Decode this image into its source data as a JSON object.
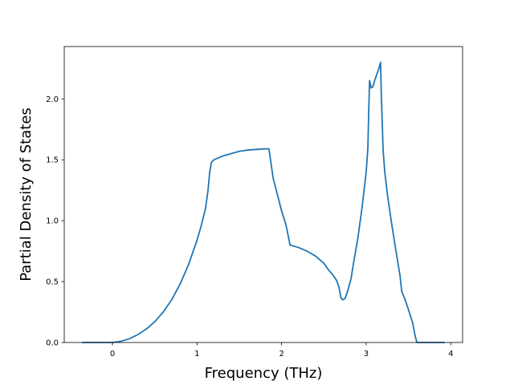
{
  "chart_data": {
    "type": "line",
    "title": "",
    "xlabel": "Frequency (THz)",
    "ylabel": "Partial Density of States",
    "xlim": [
      -0.57,
      4.14
    ],
    "ylim": [
      0.0,
      2.43
    ],
    "xticks": [
      0,
      1,
      2,
      3,
      4
    ],
    "xtick_labels": [
      "0",
      "1",
      "2",
      "3",
      "4"
    ],
    "yticks": [
      0.0,
      0.5,
      1.0,
      1.5,
      2.0
    ],
    "ytick_labels": [
      "0.0",
      "0.5",
      "1.0",
      "1.5",
      "2.0"
    ],
    "grid": false,
    "legend": "none",
    "colors": {
      "line": "#1f77b4",
      "axes": "#000000",
      "background": "#ffffff"
    },
    "series": [
      {
        "x": [
          -0.36,
          -0.2,
          0.0,
          0.05,
          0.1,
          0.2,
          0.3,
          0.4,
          0.5,
          0.6,
          0.7,
          0.8,
          0.9,
          1.0,
          1.05,
          1.1,
          1.13,
          1.15,
          1.17,
          1.2,
          1.3,
          1.4,
          1.5,
          1.6,
          1.7,
          1.8,
          1.85,
          1.9,
          2.0,
          2.05,
          2.08,
          2.1,
          2.2,
          2.3,
          2.4,
          2.5,
          2.55,
          2.6,
          2.65,
          2.68,
          2.7,
          2.72,
          2.75,
          2.78,
          2.82,
          2.85,
          2.9,
          2.95,
          3.0,
          3.02,
          3.03,
          3.04,
          3.06,
          3.08,
          3.1,
          3.15,
          3.17,
          3.18,
          3.19,
          3.2,
          3.22,
          3.25,
          3.3,
          3.35,
          3.4,
          3.42,
          3.45,
          3.5,
          3.55,
          3.58,
          3.6,
          3.75,
          3.93
        ],
        "y": [
          0.0,
          0.0,
          0.0,
          0.005,
          0.01,
          0.03,
          0.065,
          0.11,
          0.17,
          0.25,
          0.35,
          0.48,
          0.64,
          0.84,
          0.96,
          1.1,
          1.25,
          1.4,
          1.48,
          1.5,
          1.53,
          1.55,
          1.57,
          1.58,
          1.585,
          1.59,
          1.59,
          1.35,
          1.08,
          0.97,
          0.87,
          0.8,
          0.78,
          0.75,
          0.71,
          0.65,
          0.6,
          0.56,
          0.51,
          0.45,
          0.37,
          0.35,
          0.36,
          0.42,
          0.52,
          0.65,
          0.85,
          1.1,
          1.4,
          1.6,
          1.9,
          2.15,
          2.09,
          2.1,
          2.15,
          2.25,
          2.3,
          2.0,
          1.8,
          1.58,
          1.4,
          1.22,
          0.98,
          0.76,
          0.55,
          0.42,
          0.37,
          0.27,
          0.16,
          0.05,
          0.0,
          0.0,
          0.0
        ]
      }
    ]
  }
}
